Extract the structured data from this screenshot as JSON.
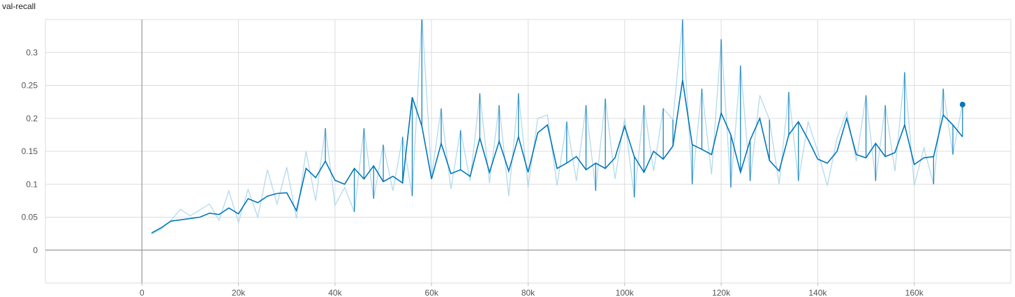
{
  "chart_data": {
    "type": "line",
    "title": "val-recall",
    "xlim": [
      -20000,
      180000
    ],
    "ylim": [
      -0.05,
      0.35
    ],
    "x_ticks": [
      0,
      20000,
      40000,
      60000,
      80000,
      100000,
      120000,
      140000,
      160000
    ],
    "x_tick_labels": [
      "0",
      "20k",
      "40k",
      "60k",
      "80k",
      "100k",
      "120k",
      "140k",
      "160k"
    ],
    "y_ticks": [
      0,
      0.05,
      0.1,
      0.15,
      0.2,
      0.25,
      0.3
    ],
    "y_tick_labels": [
      "0",
      "0.05",
      "0.1",
      "0.15",
      "0.2",
      "0.25",
      "0.3"
    ],
    "grid": true,
    "colors": {
      "smoothed": "#0077bb",
      "raw": "#a6d3ea",
      "axis": "#999999",
      "grid": "#dddddd"
    },
    "series": [
      {
        "role": "raw",
        "x": [
          2000,
          4000,
          6000,
          8000,
          10000,
          12000,
          14000,
          16000,
          18000,
          20000,
          22000,
          24000,
          26000,
          28000,
          30000,
          32000,
          34000,
          36000,
          38000,
          40000,
          42000,
          44000,
          46000,
          48000,
          50000,
          52000,
          54000,
          56000,
          58000,
          60000,
          62000,
          64000,
          66000,
          68000,
          70000,
          72000,
          74000,
          76000,
          78000,
          80000,
          82000,
          84000,
          86000,
          88000,
          90000,
          92000,
          94000,
          96000,
          98000,
          100000,
          102000,
          104000,
          106000,
          108000,
          110000,
          112000,
          114000,
          116000,
          118000,
          120000,
          122000,
          124000,
          126000,
          128000,
          130000,
          132000,
          134000,
          136000,
          138000,
          140000,
          142000,
          144000,
          146000,
          148000,
          150000,
          152000,
          154000,
          156000,
          158000,
          160000,
          162000,
          164000,
          166000,
          168000,
          170000
        ],
        "values": [
          0.024,
          0.032,
          0.045,
          0.062,
          0.052,
          0.061,
          0.07,
          0.045,
          0.09,
          0.042,
          0.092,
          0.05,
          0.122,
          0.07,
          0.126,
          0.048,
          0.15,
          0.075,
          0.185,
          0.068,
          0.095,
          0.058,
          0.185,
          0.078,
          0.16,
          0.09,
          0.172,
          0.082,
          0.358,
          0.112,
          0.215,
          0.093,
          0.182,
          0.105,
          0.238,
          0.102,
          0.22,
          0.082,
          0.238,
          0.095,
          0.2,
          0.205,
          0.098,
          0.195,
          0.105,
          0.22,
          0.09,
          0.23,
          0.108,
          0.2,
          0.08,
          0.22,
          0.12,
          0.215,
          0.198,
          0.35,
          0.1,
          0.245,
          0.115,
          0.32,
          0.095,
          0.28,
          0.105,
          0.235,
          0.198,
          0.1,
          0.24,
          0.105,
          0.195,
          0.15,
          0.098,
          0.17,
          0.21,
          0.135,
          0.235,
          0.105,
          0.22,
          0.12,
          0.27,
          0.098,
          0.155,
          0.1,
          0.245,
          0.145,
          0.222
        ]
      },
      {
        "role": "smoothed",
        "x": [
          2000,
          4000,
          6000,
          8000,
          10000,
          12000,
          14000,
          16000,
          18000,
          20000,
          22000,
          24000,
          26000,
          28000,
          30000,
          32000,
          34000,
          36000,
          38000,
          40000,
          42000,
          44000,
          46000,
          48000,
          50000,
          52000,
          54000,
          56000,
          58000,
          60000,
          62000,
          64000,
          66000,
          68000,
          70000,
          72000,
          74000,
          76000,
          78000,
          80000,
          82000,
          84000,
          86000,
          88000,
          90000,
          92000,
          94000,
          96000,
          98000,
          100000,
          102000,
          104000,
          106000,
          108000,
          110000,
          112000,
          114000,
          116000,
          118000,
          120000,
          122000,
          124000,
          126000,
          128000,
          130000,
          132000,
          134000,
          136000,
          138000,
          140000,
          142000,
          144000,
          146000,
          148000,
          150000,
          152000,
          154000,
          156000,
          158000,
          160000,
          162000,
          164000,
          166000,
          168000,
          170000
        ],
        "values": [
          0.026,
          0.034,
          0.044,
          0.046,
          0.048,
          0.05,
          0.056,
          0.054,
          0.064,
          0.055,
          0.078,
          0.072,
          0.082,
          0.086,
          0.087,
          0.06,
          0.124,
          0.11,
          0.135,
          0.106,
          0.1,
          0.124,
          0.108,
          0.128,
          0.104,
          0.112,
          0.102,
          0.232,
          0.188,
          0.108,
          0.162,
          0.116,
          0.122,
          0.112,
          0.17,
          0.118,
          0.165,
          0.12,
          0.172,
          0.118,
          0.178,
          0.19,
          0.124,
          0.132,
          0.142,
          0.122,
          0.132,
          0.124,
          0.14,
          0.188,
          0.142,
          0.118,
          0.15,
          0.138,
          0.158,
          0.258,
          0.16,
          0.153,
          0.145,
          0.208,
          0.175,
          0.118,
          0.167,
          0.2,
          0.136,
          0.12,
          0.175,
          0.195,
          0.168,
          0.138,
          0.132,
          0.15,
          0.2,
          0.145,
          0.14,
          0.162,
          0.142,
          0.148,
          0.19,
          0.13,
          0.14,
          0.142,
          0.205,
          0.19,
          0.172
        ]
      }
    ],
    "endpoint": {
      "x": 170000,
      "y": 0.221
    }
  }
}
